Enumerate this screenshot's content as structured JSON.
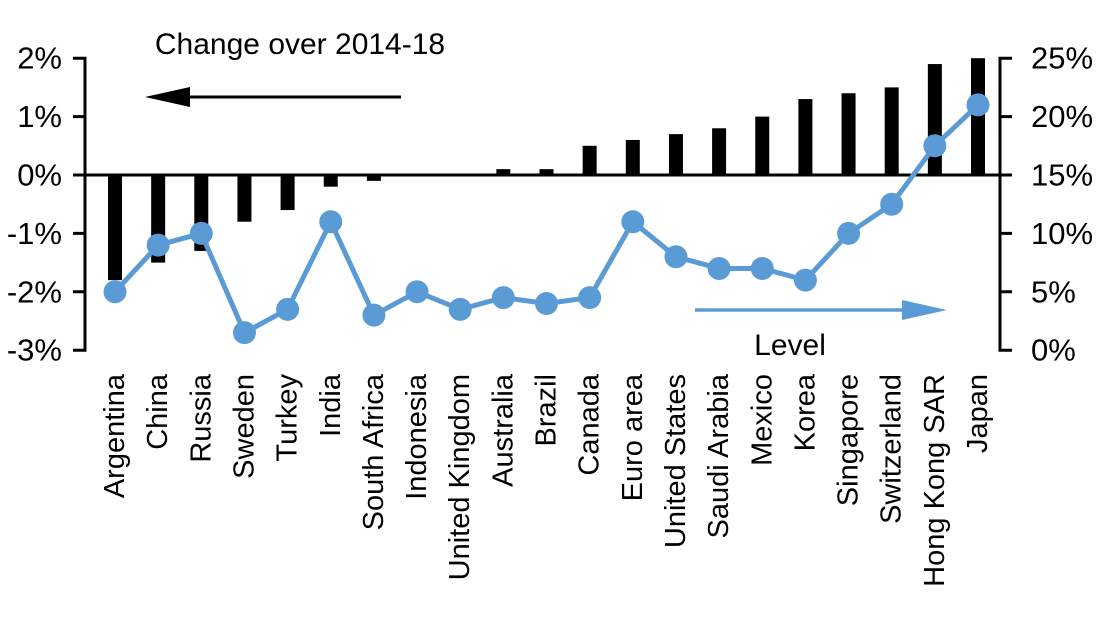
{
  "chart_data": {
    "type": "combo-bar-line",
    "title": "",
    "categories": [
      "Argentina",
      "China",
      "Russia",
      "Sweden",
      "Turkey",
      "India",
      "South Africa",
      "Indonesia",
      "United Kingdom",
      "Australia",
      "Brazil",
      "Canada",
      "Euro area",
      "United States",
      "Saudi Arabia",
      "Mexico",
      "Korea",
      "Singapore",
      "Switzerland",
      "Hong Kong SAR",
      "Japan"
    ],
    "series": [
      {
        "name": "Change over 2014-18",
        "type": "bar",
        "axis": "left",
        "color": "#000000",
        "values": [
          -1.8,
          -1.5,
          -1.3,
          -0.8,
          -0.6,
          -0.2,
          -0.1,
          0,
          0,
          0.1,
          0.1,
          0.5,
          0.6,
          0.7,
          0.8,
          1.0,
          1.3,
          1.4,
          1.5,
          1.9,
          2.0
        ]
      },
      {
        "name": "Level",
        "type": "line",
        "axis": "right",
        "color": "#5B9BD5",
        "values": [
          5,
          9,
          10,
          1.5,
          3.5,
          11,
          3,
          5,
          3.5,
          4.5,
          4,
          4.5,
          11,
          8,
          7,
          7,
          6,
          10,
          12.5,
          17.5,
          21
        ]
      }
    ],
    "left_axis": {
      "min": -3,
      "max": 2,
      "tick_step": 1,
      "tick_labels": [
        "2%",
        "1%",
        "0%",
        "-1%",
        "-2%",
        "-3%"
      ],
      "tick_values": [
        2,
        1,
        0,
        -1,
        -2,
        -3
      ]
    },
    "right_axis": {
      "min": 0,
      "max": 25,
      "tick_step": 5,
      "tick_labels": [
        "25%",
        "20%",
        "15%",
        "10%",
        "5%",
        "0%"
      ],
      "tick_values": [
        25,
        20,
        15,
        10,
        5,
        0
      ]
    },
    "annotations": [
      {
        "text": "Change over 2014-18",
        "arrow_direction": "left",
        "arrow_color": "#000000"
      },
      {
        "text": "Level",
        "arrow_direction": "right",
        "arrow_color": "#5B9BD5"
      }
    ],
    "grid": false,
    "legend_position": "none",
    "background_color": "#FFFFFF"
  }
}
